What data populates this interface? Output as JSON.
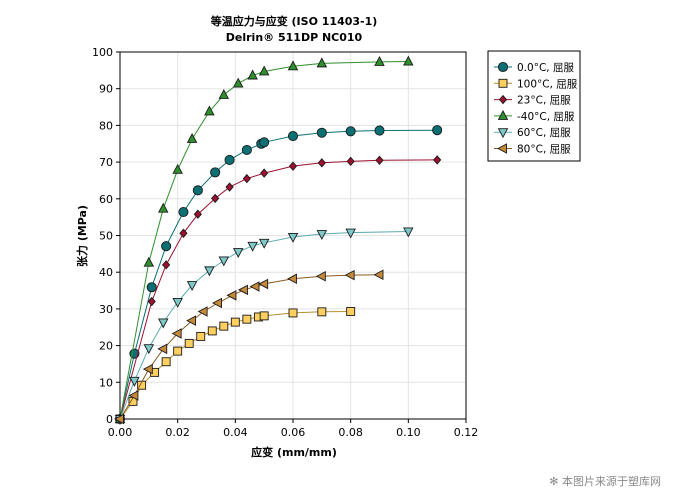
{
  "chart_data": {
    "type": "line",
    "title": "等温应力与应变 (ISO 11403-1)",
    "subtitle": "Delrin® 511DP NC010",
    "xlabel": "应变 (mm/mm)",
    "ylabel": "张力 (MPa)",
    "xlim": [
      0.0,
      0.12
    ],
    "ylim": [
      0,
      100
    ],
    "xticks": [
      "0.00",
      "0.02",
      "0.04",
      "0.06",
      "0.08",
      "0.10",
      "0.12"
    ],
    "yticks": [
      "0",
      "10",
      "20",
      "30",
      "40",
      "50",
      "60",
      "70",
      "80",
      "90",
      "100"
    ],
    "grid": true,
    "legend_position": "top-right outside",
    "series": [
      {
        "name": "0.0°C, 屈服",
        "marker": "circle",
        "color": "#0b6f74",
        "line_color": "#0b6f74",
        "x": [
          0,
          0.005,
          0.011,
          0.016,
          0.022,
          0.027,
          0.033,
          0.038,
          0.044,
          0.049,
          0.05,
          0.06,
          0.07,
          0.08,
          0.09,
          0.11
        ],
        "y": [
          0,
          17.8,
          35.9,
          47.1,
          56.4,
          62.3,
          67.2,
          70.6,
          73.3,
          75.0,
          75.4,
          77.1,
          78.0,
          78.4,
          78.6,
          78.7
        ]
      },
      {
        "name": "100°C, 屈服",
        "marker": "square",
        "color": "#ffd060",
        "line_color": "#b89030",
        "x": [
          0,
          0.0045,
          0.0075,
          0.012,
          0.016,
          0.02,
          0.024,
          0.028,
          0.032,
          0.036,
          0.04,
          0.044,
          0.048,
          0.05,
          0.06,
          0.07,
          0.08
        ],
        "y": [
          0,
          4.8,
          9.2,
          12.7,
          15.6,
          18.5,
          20.6,
          22.5,
          24.0,
          25.3,
          26.4,
          27.2,
          27.8,
          28.1,
          28.9,
          29.2,
          29.3
        ]
      },
      {
        "name": "23°C, 屈服",
        "marker": "diamond",
        "color": "#9e1030",
        "line_color": "#9e1030",
        "x": [
          0,
          0.011,
          0.016,
          0.022,
          0.027,
          0.033,
          0.038,
          0.044,
          0.05,
          0.06,
          0.07,
          0.08,
          0.09,
          0.11
        ],
        "y": [
          0,
          32.0,
          42.0,
          50.6,
          55.8,
          60.1,
          63.2,
          65.5,
          67.0,
          68.9,
          69.8,
          70.2,
          70.5,
          70.6
        ]
      },
      {
        "name": "-40°C, 屈服",
        "marker": "triangle-up",
        "color": "#2f8f2f",
        "line_color": "#2f8f2f",
        "x": [
          0,
          0.01,
          0.015,
          0.02,
          0.025,
          0.031,
          0.036,
          0.041,
          0.046,
          0.05,
          0.06,
          0.07,
          0.09,
          0.1
        ],
        "y": [
          0,
          42.6,
          57.3,
          67.9,
          76.3,
          83.8,
          88.3,
          91.4,
          93.6,
          94.7,
          96.1,
          96.9,
          97.3,
          97.4
        ]
      },
      {
        "name": "60°C, 屈服",
        "marker": "triangle-down",
        "color": "#7ec8c8",
        "line_color": "#5aaab0",
        "x": [
          0,
          0.005,
          0.01,
          0.015,
          0.02,
          0.025,
          0.031,
          0.036,
          0.041,
          0.046,
          0.05,
          0.06,
          0.07,
          0.08,
          0.1
        ],
        "y": [
          0,
          10.4,
          19.3,
          26.3,
          31.9,
          36.5,
          40.5,
          43.2,
          45.5,
          47.2,
          48.0,
          49.6,
          50.4,
          50.8,
          51.1
        ]
      },
      {
        "name": "80°C, 屈服",
        "marker": "triangle-left",
        "color": "#c48a3a",
        "line_color": "#8a5a20",
        "x": [
          0,
          0.005,
          0.01,
          0.015,
          0.02,
          0.025,
          0.029,
          0.034,
          0.039,
          0.043,
          0.047,
          0.05,
          0.06,
          0.07,
          0.08,
          0.09
        ],
        "y": [
          0,
          6.4,
          13.6,
          19.1,
          23.3,
          26.8,
          29.3,
          31.6,
          33.7,
          35.2,
          36.1,
          36.8,
          38.2,
          38.9,
          39.2,
          39.3
        ]
      }
    ]
  },
  "watermark": "本图片来源于塑库网"
}
